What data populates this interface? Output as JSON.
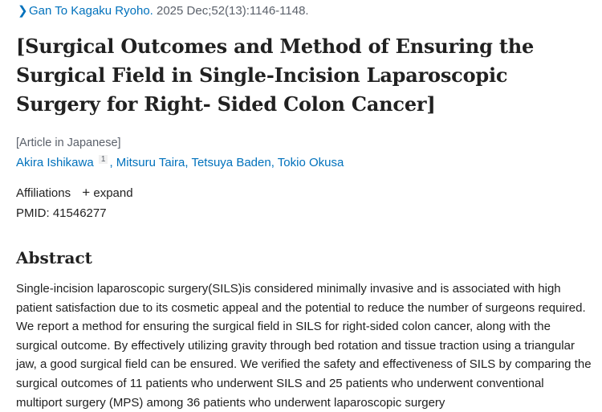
{
  "citation": {
    "journal": "Gan To Kagaku Ryoho.",
    "details": " 2025 Dec;52(13):1146-1148."
  },
  "title": "[Surgical Outcomes and Method of Ensuring the Surgical Field in Single-Incision Laparoscopic Surgery for Right- Sided Colon Cancer]",
  "language_note": "[Article in Japanese]",
  "authors": [
    {
      "name": "Akira Ishikawa",
      "sup": "1"
    },
    {
      "name": "Mitsuru Taira"
    },
    {
      "name": "Tetsuya Baden"
    },
    {
      "name": "Tokio Okusa"
    }
  ],
  "affiliations": {
    "label": "Affiliations",
    "expand": "expand"
  },
  "pmid": "PMID: 41546277",
  "abstract": {
    "heading": "Abstract",
    "text": "Single-incision laparoscopic surgery(SILS)is considered minimally invasive and is associated with high patient satisfaction due to its cosmetic appeal and the potential to reduce the number of surgeons required. We report a method for ensuring the surgical field in SILS for right-sided colon cancer, along with the surgical outcome. By effectively utilizing gravity through bed rotation and tissue traction using a triangular jaw, a good surgical field can be ensured. We verified the safety and effectiveness of SILS by comparing the surgical outcomes of 11 patients who underwent SILS and 25 patients who underwent conventional multiport surgery (MPS) among 36 patients who underwent laparoscopic surgery"
  }
}
